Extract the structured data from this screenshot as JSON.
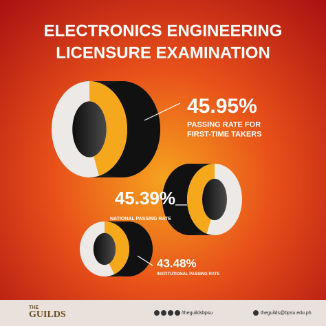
{
  "header": {
    "title": [
      "ELECTRONICS ENGINEERING",
      "LICENSURE EXAMINATION"
    ]
  },
  "chart_data": [
    {
      "type": "donut",
      "label": [
        "PASSING RATE FOR",
        "FIRST-TIME TAKERS"
      ],
      "values": [
        45.95
      ],
      "value_labels": [
        "45.95%"
      ],
      "color": "#f5a81c"
    },
    {
      "type": "donut",
      "label": [
        "NATIONAL PASSING RATE"
      ],
      "values": [
        45.39
      ],
      "value_labels": [
        "45.39%"
      ],
      "color": "#f5a81c"
    },
    {
      "type": "donut",
      "label": [
        "INSTITUTIONAL PASSING RATE"
      ],
      "values": [
        43.48
      ],
      "value_labels": [
        "43.48%"
      ],
      "color": "#f5a81c"
    }
  ],
  "footer": {
    "brand_small": "THE",
    "brand": "GUILDS",
    "social": "/theguildsbpsu",
    "email": "theguilds@bpsu.edu.ph"
  }
}
